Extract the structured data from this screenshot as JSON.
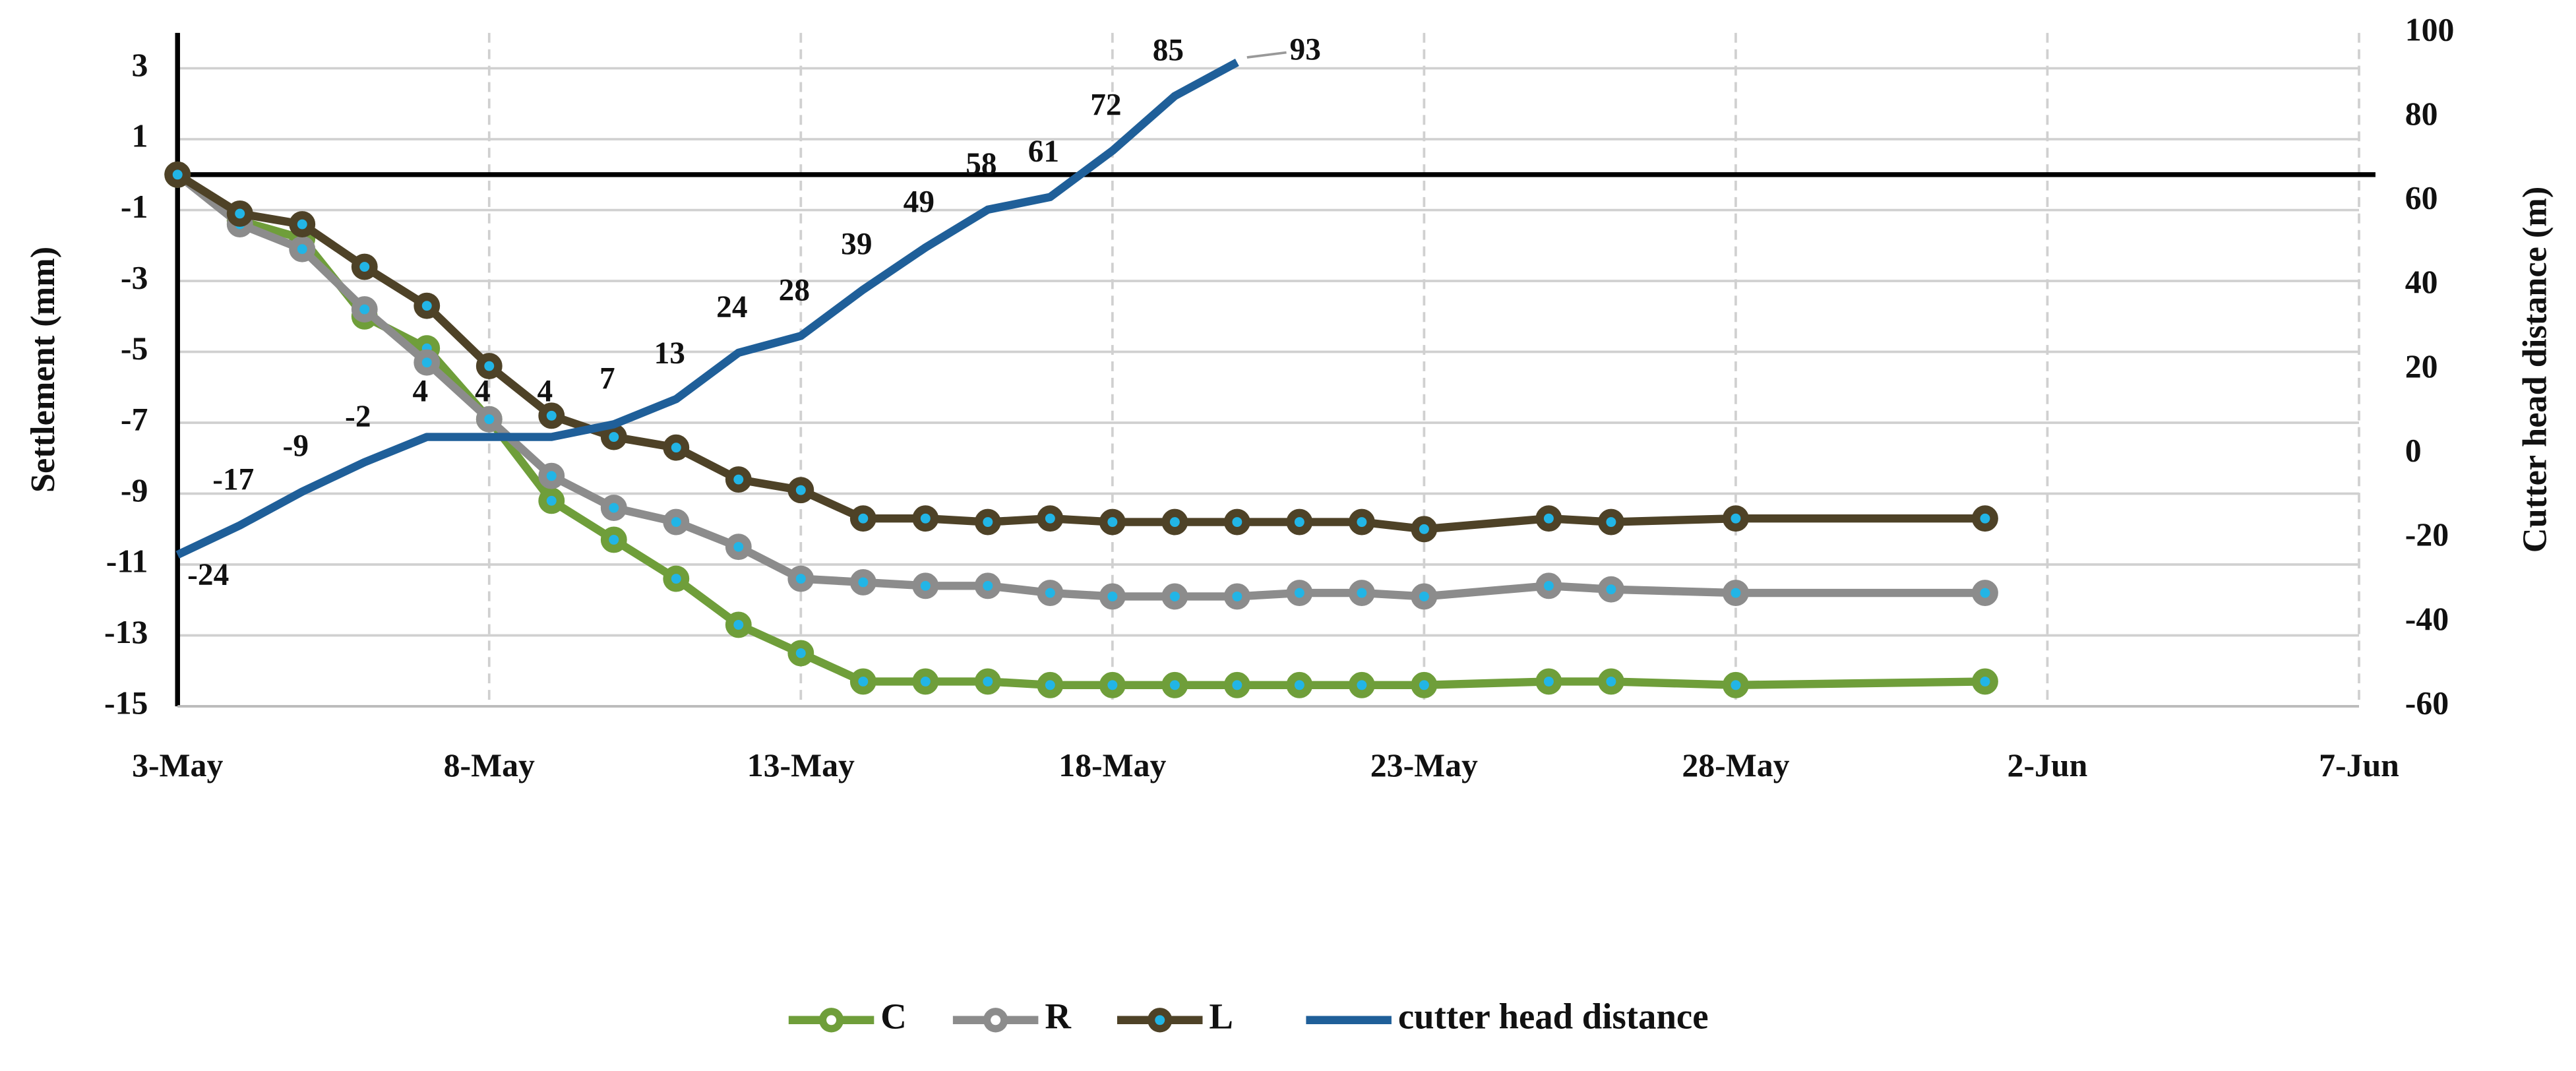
{
  "chart_data": {
    "type": "line",
    "ylabel": "Settlement (mm)",
    "y2label": "Cutter head distance (m)",
    "xlim": [
      "05-03",
      "06-07"
    ],
    "xticks": [
      {
        "value": "05-03",
        "label": "3-May"
      },
      {
        "value": "05-08",
        "label": "8-May"
      },
      {
        "value": "05-13",
        "label": "13-May"
      },
      {
        "value": "05-18",
        "label": "18-May"
      },
      {
        "value": "05-23",
        "label": "23-May"
      },
      {
        "value": "05-28",
        "label": "28-May"
      },
      {
        "value": "06-02",
        "label": "2-Jun"
      },
      {
        "value": "06-07",
        "label": "7-Jun"
      }
    ],
    "ylim": [
      -15,
      4
    ],
    "yticks": [
      -15,
      -13,
      -11,
      -9,
      -7,
      -5,
      -3,
      -1,
      1,
      3
    ],
    "y2lim": [
      -60,
      100
    ],
    "y2ticks": [
      -60,
      -40,
      -20,
      0,
      20,
      40,
      60,
      80,
      100
    ],
    "grid": true,
    "legend": "bottom",
    "series": [
      {
        "name": "C",
        "color": "#6f9e3a",
        "x": [
          "05-03",
          "05-04",
          "05-05",
          "05-06",
          "05-07",
          "05-08",
          "05-09",
          "05-10",
          "05-11",
          "05-12",
          "05-13",
          "05-14",
          "05-15",
          "05-16",
          "05-17",
          "05-18",
          "05-19",
          "05-20",
          "05-21",
          "05-22",
          "05-23",
          "05-25",
          "05-26",
          "05-28",
          "06-01"
        ],
        "values": [
          0,
          -1.3,
          -1.8,
          -4.0,
          -4.9,
          -6.9,
          -9.2,
          -10.3,
          -11.4,
          -12.7,
          -13.5,
          -14.3,
          -14.3,
          -14.3,
          -14.4,
          -14.4,
          -14.4,
          -14.4,
          -14.4,
          -14.4,
          -14.4,
          -14.3,
          -14.3,
          -14.4,
          -14.3
        ]
      },
      {
        "name": "R",
        "color": "#8c8c8c",
        "x": [
          "05-03",
          "05-04",
          "05-05",
          "05-06",
          "05-07",
          "05-08",
          "05-09",
          "05-10",
          "05-11",
          "05-12",
          "05-13",
          "05-14",
          "05-15",
          "05-16",
          "05-17",
          "05-18",
          "05-19",
          "05-20",
          "05-21",
          "05-22",
          "05-23",
          "05-25",
          "05-26",
          "05-28",
          "06-01"
        ],
        "values": [
          0,
          -1.4,
          -2.1,
          -3.8,
          -5.3,
          -6.9,
          -8.5,
          -9.4,
          -9.8,
          -10.5,
          -11.4,
          -11.5,
          -11.6,
          -11.6,
          -11.8,
          -11.9,
          -11.9,
          -11.9,
          -11.8,
          -11.8,
          -11.9,
          -11.6,
          -11.7,
          -11.8,
          -11.8
        ]
      },
      {
        "name": "L",
        "color": "#4e4227",
        "x": [
          "05-03",
          "05-04",
          "05-05",
          "05-06",
          "05-07",
          "05-08",
          "05-09",
          "05-10",
          "05-11",
          "05-12",
          "05-13",
          "05-14",
          "05-15",
          "05-16",
          "05-17",
          "05-18",
          "05-19",
          "05-20",
          "05-21",
          "05-22",
          "05-23",
          "05-25",
          "05-26",
          "05-28",
          "06-01"
        ],
        "values": [
          0,
          -1.1,
          -1.4,
          -2.6,
          -3.7,
          -5.4,
          -6.8,
          -7.4,
          -7.7,
          -8.6,
          -8.9,
          -9.7,
          -9.7,
          -9.8,
          -9.7,
          -9.8,
          -9.8,
          -9.8,
          -9.8,
          -9.8,
          -10.0,
          -9.7,
          -9.8,
          -9.7,
          -9.7
        ]
      },
      {
        "name": "cutter head distance",
        "color": "#1f5f99",
        "axis": "y2",
        "x": [
          "05-03",
          "05-04",
          "05-05",
          "05-06",
          "05-07",
          "05-08",
          "05-09",
          "05-10",
          "05-11",
          "05-12",
          "05-13",
          "05-14",
          "05-15",
          "05-16",
          "05-17",
          "05-18",
          "05-19",
          "05-20"
        ],
        "values": [
          -24,
          -17,
          -9,
          -2,
          4,
          4,
          4,
          7,
          13,
          24,
          28,
          39,
          49,
          58,
          61,
          72,
          85,
          93
        ]
      }
    ]
  }
}
